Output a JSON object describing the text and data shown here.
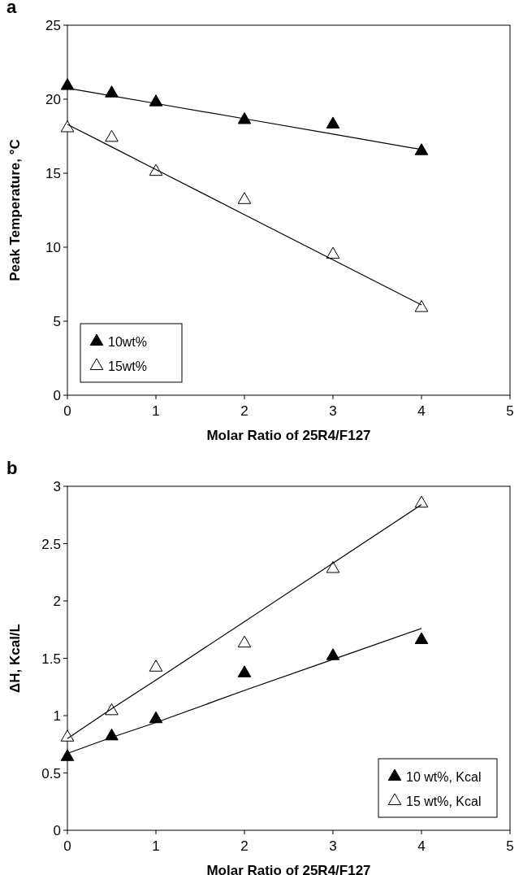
{
  "chart_data": [
    {
      "type": "scatter",
      "title": "a",
      "xlabel": "Molar Ratio of 25R4/F127",
      "ylabel": "Peak Temperature, °C",
      "x": [
        0,
        0.5,
        1,
        2,
        3,
        4
      ],
      "xlim": [
        0,
        5
      ],
      "xticks": [
        0,
        1,
        2,
        3,
        4,
        5
      ],
      "ylim": [
        0,
        25
      ],
      "yticks": [
        0,
        5,
        10,
        15,
        20,
        25
      ],
      "grid": false,
      "legend": "bottom left",
      "marker": "triangle",
      "series": [
        {
          "name": "10wt%",
          "color": "#000000",
          "values": [
            20.9,
            20.4,
            19.8,
            18.6,
            18.3,
            16.5
          ]
        },
        {
          "name": "15wt%",
          "color": "#ffffff",
          "values": [
            18.05,
            17.4,
            15.1,
            13.2,
            9.5,
            5.9
          ]
        },
        {
          "type": "line",
          "color": "#000000",
          "values": [
            20.75,
            20.23,
            19.71,
            18.68,
            17.64,
            16.6
          ],
          "marker": "none"
        },
        {
          "type": "line",
          "color": "#000000",
          "values": [
            18.3,
            16.78,
            15.25,
            12.2,
            9.15,
            6.1
          ],
          "marker": "none"
        }
      ]
    },
    {
      "type": "scatter",
      "title": "b",
      "xlabel": "Molar Ratio of 25R4/F127",
      "ylabel": "ΔH, Kcal/L",
      "x": [
        0,
        0.5,
        1,
        2,
        3,
        4
      ],
      "xlim": [
        0,
        5
      ],
      "xticks": [
        0,
        1,
        2,
        3,
        4,
        5
      ],
      "ylim": [
        0,
        3
      ],
      "yticks": [
        0,
        0.5,
        1,
        1.5,
        2,
        2.5,
        3
      ],
      "grid": false,
      "legend": "bottom right",
      "marker": "triangle",
      "series": [
        {
          "name": "10 wt%, Kcal",
          "color": "#000000",
          "values": [
            0.64,
            0.82,
            0.97,
            1.37,
            1.52,
            1.66
          ]
        },
        {
          "name": "15 wt%, Kcal",
          "color": "#ffffff",
          "values": [
            0.81,
            1.04,
            1.42,
            1.63,
            2.28,
            2.85
          ]
        },
        {
          "type": "line",
          "color": "#000000",
          "values": [
            0.67,
            0.81,
            0.94,
            1.22,
            1.49,
            1.76
          ],
          "marker": "none"
        },
        {
          "type": "line",
          "color": "#000000",
          "values": [
            0.8,
            1.06,
            1.31,
            1.82,
            2.33,
            2.84
          ],
          "marker": "none"
        }
      ]
    }
  ]
}
